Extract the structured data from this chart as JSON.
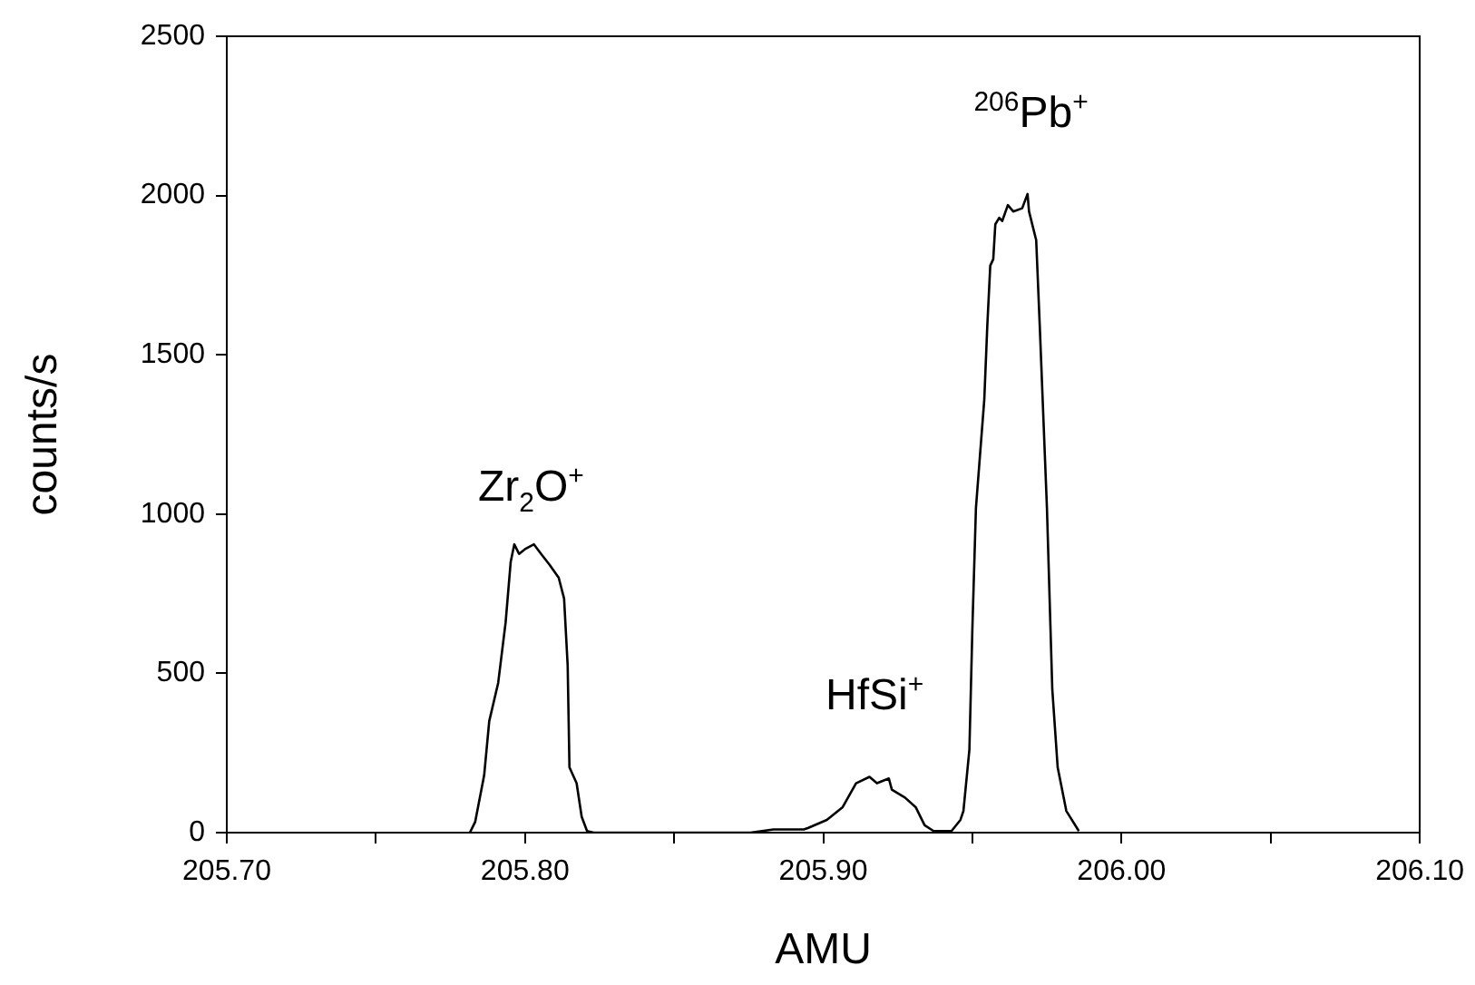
{
  "chart_data": {
    "type": "line",
    "xlabel": "AMU",
    "ylabel": "counts/s",
    "x": [
      205.7815,
      205.7833,
      205.7863,
      205.788,
      205.791,
      205.7935,
      205.7952,
      205.7964,
      205.798,
      205.8,
      205.803,
      205.8054,
      205.8083,
      205.8113,
      205.8131,
      205.8143,
      205.8149,
      205.8173,
      205.819,
      205.8208,
      205.823,
      205.8756,
      205.8833,
      205.8935,
      205.895,
      205.9012,
      205.9065,
      205.911,
      205.9155,
      205.918,
      205.922,
      205.923,
      205.9274,
      205.931,
      205.934,
      205.937,
      205.943,
      205.946,
      205.947,
      205.949,
      205.95,
      205.9512,
      205.954,
      205.955,
      205.956,
      205.957,
      205.9577,
      205.959,
      205.96,
      205.9619,
      205.9637,
      205.9667,
      205.9685,
      205.969,
      205.9714,
      205.9726,
      205.975,
      205.9768,
      205.9786,
      205.9815,
      205.9857
    ],
    "values": [
      0,
      34,
      180,
      350,
      470,
      660,
      850,
      905,
      875,
      890,
      905,
      875,
      840,
      800,
      735,
      525,
      205,
      155,
      50,
      5,
      0,
      0,
      10,
      10,
      15,
      40,
      80,
      155,
      175,
      155,
      170,
      135,
      110,
      80,
      23,
      5,
      5,
      40,
      68,
      260,
      640,
      1020,
      1360,
      1590,
      1780,
      1800,
      1910,
      1930,
      1920,
      1970,
      1950,
      1960,
      2005,
      1950,
      1860,
      1590,
      1020,
      450,
      205,
      68,
      5
    ],
    "color": "#000000",
    "marker": "none",
    "line_style": "solid",
    "grid": false,
    "legend": false,
    "xlim": [
      205.7,
      206.1
    ],
    "xticks": [
      {
        "value": 205.7,
        "label": "205.70"
      },
      {
        "value": 205.75,
        "label": null
      },
      {
        "value": 205.8,
        "label": "205.80"
      },
      {
        "value": 205.85,
        "label": null
      },
      {
        "value": 205.9,
        "label": "205.90"
      },
      {
        "value": 205.95,
        "label": null
      },
      {
        "value": 206.0,
        "label": "206.00"
      },
      {
        "value": 206.05,
        "label": null
      },
      {
        "value": 206.1,
        "label": "206.10"
      }
    ],
    "ylim": [
      0,
      2500
    ],
    "yticks": [
      0,
      500,
      1000,
      1500,
      2000,
      2500
    ],
    "annotations": [
      "Zr$_{2}$O$^{+}$",
      "HfSi$^{+}$",
      "$^{206}$Pb$^{+}$"
    ]
  }
}
